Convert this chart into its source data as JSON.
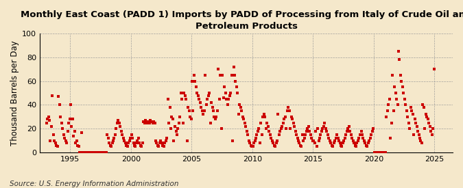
{
  "title": "Monthly East Coast (PADD 1) Imports by PADD of Processing from Italy of Crude Oil and\nPetroleum Products",
  "ylabel": "Thousand Barrels per Day",
  "source": "Source: U.S. Energy Information Administration",
  "background_color": "#f5e8cb",
  "plot_bg_color": "#f5e8cb",
  "marker_color": "#cc0000",
  "xlim": [
    1992.5,
    2026.5
  ],
  "ylim": [
    0,
    100
  ],
  "yticks": [
    0,
    20,
    40,
    60,
    80,
    100
  ],
  "xticks": [
    1995,
    2000,
    2005,
    2010,
    2015,
    2020,
    2025
  ],
  "title_fontsize": 9.5,
  "ylabel_fontsize": 8.5,
  "source_fontsize": 7.5,
  "x_vals": [
    1993.04,
    1993.12,
    1993.21,
    1993.29,
    1993.37,
    1993.46,
    1993.54,
    1993.62,
    1993.71,
    1993.79,
    1993.87,
    1993.96,
    1994.04,
    1994.12,
    1994.21,
    1994.29,
    1994.37,
    1994.46,
    1994.54,
    1994.62,
    1994.71,
    1994.79,
    1994.87,
    1994.96,
    1995.04,
    1995.12,
    1995.21,
    1995.29,
    1995.37,
    1995.46,
    1995.54,
    1995.62,
    1995.71,
    1995.79,
    1995.87,
    1995.96,
    1996.04,
    1996.12,
    1996.21,
    1996.29,
    1996.37,
    1996.46,
    1996.54,
    1996.62,
    1996.71,
    1996.79,
    1996.87,
    1996.96,
    1997.04,
    1997.12,
    1997.21,
    1997.29,
    1997.37,
    1997.46,
    1997.54,
    1997.62,
    1997.71,
    1997.79,
    1997.87,
    1997.96,
    1998.04,
    1998.12,
    1998.21,
    1998.29,
    1998.37,
    1998.46,
    1998.54,
    1998.62,
    1998.71,
    1998.79,
    1998.87,
    1998.96,
    1999.04,
    1999.12,
    1999.21,
    1999.29,
    1999.37,
    1999.46,
    1999.54,
    1999.62,
    1999.71,
    1999.79,
    1999.87,
    1999.96,
    2000.04,
    2000.12,
    2000.21,
    2000.29,
    2000.37,
    2000.46,
    2000.54,
    2000.62,
    2000.71,
    2000.79,
    2000.87,
    2000.96,
    2001.04,
    2001.12,
    2001.21,
    2001.29,
    2001.37,
    2001.46,
    2001.54,
    2001.62,
    2001.71,
    2001.79,
    2001.87,
    2001.96,
    2002.04,
    2002.12,
    2002.21,
    2002.29,
    2002.37,
    2002.46,
    2002.54,
    2002.62,
    2002.71,
    2002.79,
    2002.87,
    2002.96,
    2003.04,
    2003.12,
    2003.21,
    2003.29,
    2003.37,
    2003.46,
    2003.54,
    2003.62,
    2003.71,
    2003.79,
    2003.87,
    2003.96,
    2004.04,
    2004.12,
    2004.21,
    2004.29,
    2004.37,
    2004.46,
    2004.54,
    2004.62,
    2004.71,
    2004.79,
    2004.87,
    2004.96,
    2005.04,
    2005.12,
    2005.21,
    2005.29,
    2005.37,
    2005.46,
    2005.54,
    2005.62,
    2005.71,
    2005.79,
    2005.87,
    2005.96,
    2006.04,
    2006.12,
    2006.21,
    2006.29,
    2006.37,
    2006.46,
    2006.54,
    2006.62,
    2006.71,
    2006.79,
    2006.87,
    2006.96,
    2007.04,
    2007.12,
    2007.21,
    2007.29,
    2007.37,
    2007.46,
    2007.54,
    2007.62,
    2007.71,
    2007.79,
    2007.87,
    2007.96,
    2008.04,
    2008.12,
    2008.21,
    2008.29,
    2008.37,
    2008.46,
    2008.54,
    2008.62,
    2008.71,
    2008.79,
    2008.87,
    2008.96,
    2009.04,
    2009.12,
    2009.21,
    2009.29,
    2009.37,
    2009.46,
    2009.54,
    2009.62,
    2009.71,
    2009.79,
    2009.87,
    2009.96,
    2010.04,
    2010.12,
    2010.21,
    2010.29,
    2010.37,
    2010.46,
    2010.54,
    2010.62,
    2010.71,
    2010.79,
    2010.87,
    2010.96,
    2011.04,
    2011.12,
    2011.21,
    2011.29,
    2011.37,
    2011.46,
    2011.54,
    2011.62,
    2011.71,
    2011.79,
    2011.87,
    2011.96,
    2012.04,
    2012.12,
    2012.21,
    2012.29,
    2012.37,
    2012.46,
    2012.54,
    2012.62,
    2012.71,
    2012.79,
    2012.87,
    2012.96,
    2013.04,
    2013.12,
    2013.21,
    2013.29,
    2013.37,
    2013.46,
    2013.54,
    2013.62,
    2013.71,
    2013.79,
    2013.87,
    2013.96,
    2014.04,
    2014.12,
    2014.21,
    2014.29,
    2014.37,
    2014.46,
    2014.54,
    2014.62,
    2014.71,
    2014.79,
    2014.87,
    2014.96,
    2015.04,
    2015.12,
    2015.21,
    2015.29,
    2015.37,
    2015.46,
    2015.54,
    2015.62,
    2015.71,
    2015.79,
    2015.87,
    2015.96,
    2016.04,
    2016.12,
    2016.21,
    2016.29,
    2016.37,
    2016.46,
    2016.54,
    2016.62,
    2016.71,
    2016.79,
    2016.87,
    2016.96,
    2017.04,
    2017.12,
    2017.21,
    2017.29,
    2017.37,
    2017.46,
    2017.54,
    2017.62,
    2017.71,
    2017.79,
    2017.87,
    2017.96,
    2018.04,
    2018.12,
    2018.21,
    2018.29,
    2018.37,
    2018.46,
    2018.54,
    2018.62,
    2018.71,
    2018.79,
    2018.87,
    2018.96,
    2019.04,
    2019.12,
    2019.21,
    2019.29,
    2019.37,
    2019.46,
    2019.54,
    2019.62,
    2019.71,
    2019.79,
    2019.87,
    2019.96,
    2020.04,
    2020.12,
    2020.21,
    2020.29,
    2020.37,
    2020.46,
    2020.54,
    2020.62,
    2020.71,
    2020.79,
    2020.87,
    2020.96,
    2021.04,
    2021.12,
    2021.21,
    2021.29,
    2021.37,
    2021.46,
    2021.54,
    2021.62,
    2021.71,
    2021.79,
    2021.87,
    2021.96,
    2022.04,
    2022.12,
    2022.21,
    2022.29,
    2022.37,
    2022.46,
    2022.54,
    2022.62,
    2022.71,
    2022.79,
    2022.87,
    2022.96,
    2023.04,
    2023.12,
    2023.21,
    2023.29,
    2023.37,
    2023.46,
    2023.54,
    2023.62,
    2023.71,
    2023.79,
    2023.87,
    2023.96,
    2024.04,
    2024.12,
    2024.21,
    2024.29,
    2024.37,
    2024.46,
    2024.54,
    2024.62,
    2024.71,
    2024.79,
    2024.87,
    2024.96
  ],
  "y_vals": [
    25,
    28,
    30,
    27,
    10,
    22,
    48,
    15,
    10,
    8,
    6,
    5,
    47,
    40,
    30,
    25,
    20,
    15,
    12,
    10,
    8,
    18,
    25,
    28,
    40,
    22,
    28,
    14,
    18,
    8,
    10,
    6,
    5,
    0,
    0,
    17,
    0,
    0,
    0,
    0,
    0,
    0,
    0,
    0,
    0,
    0,
    0,
    0,
    0,
    0,
    0,
    0,
    0,
    0,
    0,
    0,
    0,
    0,
    0,
    0,
    15,
    12,
    8,
    6,
    5,
    8,
    10,
    12,
    15,
    20,
    25,
    27,
    25,
    22,
    18,
    15,
    12,
    10,
    8,
    6,
    5,
    8,
    10,
    12,
    15,
    12,
    8,
    6,
    5,
    8,
    10,
    12,
    8,
    6,
    5,
    8,
    26,
    25,
    27,
    26,
    25,
    26,
    25,
    27,
    26,
    25,
    26,
    25,
    10,
    8,
    6,
    5,
    8,
    10,
    8,
    6,
    5,
    8,
    10,
    12,
    45,
    25,
    38,
    20,
    30,
    28,
    10,
    22,
    18,
    15,
    20,
    25,
    30,
    50,
    45,
    25,
    50,
    48,
    45,
    10,
    38,
    35,
    30,
    28,
    60,
    35,
    65,
    60,
    55,
    50,
    48,
    45,
    42,
    38,
    35,
    32,
    35,
    65,
    40,
    45,
    48,
    50,
    25,
    42,
    38,
    35,
    30,
    28,
    30,
    35,
    70,
    45,
    65,
    20,
    65,
    46,
    55,
    50,
    45,
    40,
    45,
    48,
    50,
    65,
    10,
    72,
    65,
    60,
    55,
    50,
    32,
    40,
    38,
    35,
    30,
    28,
    25,
    22,
    18,
    15,
    10,
    8,
    6,
    5,
    5,
    8,
    10,
    12,
    15,
    18,
    20,
    8,
    25,
    15,
    30,
    32,
    30,
    20,
    25,
    22,
    18,
    15,
    12,
    10,
    8,
    6,
    5,
    8,
    10,
    32,
    15,
    18,
    20,
    22,
    25,
    28,
    30,
    20,
    35,
    38,
    35,
    20,
    30,
    28,
    25,
    22,
    18,
    15,
    12,
    10,
    8,
    6,
    5,
    15,
    10,
    12,
    15,
    18,
    20,
    22,
    18,
    15,
    12,
    10,
    10,
    8,
    18,
    5,
    20,
    10,
    12,
    15,
    18,
    20,
    22,
    25,
    20,
    18,
    15,
    12,
    10,
    8,
    6,
    5,
    8,
    10,
    12,
    15,
    12,
    10,
    8,
    6,
    5,
    8,
    10,
    12,
    15,
    18,
    20,
    22,
    18,
    15,
    12,
    10,
    8,
    6,
    5,
    8,
    10,
    12,
    15,
    18,
    15,
    12,
    10,
    8,
    6,
    5,
    8,
    10,
    12,
    15,
    18,
    20,
    0,
    0,
    0,
    0,
    0,
    0,
    0,
    0,
    0,
    0,
    0,
    0,
    30,
    35,
    40,
    45,
    12,
    25,
    65,
    35,
    55,
    50,
    45,
    40,
    85,
    78,
    65,
    60,
    55,
    50,
    45,
    40,
    35,
    30,
    25,
    20,
    38,
    35,
    32,
    15,
    28,
    25,
    22,
    18,
    15,
    12,
    10,
    8,
    40,
    38,
    20,
    32,
    30,
    28,
    25,
    22,
    18,
    15,
    20,
    70
  ]
}
